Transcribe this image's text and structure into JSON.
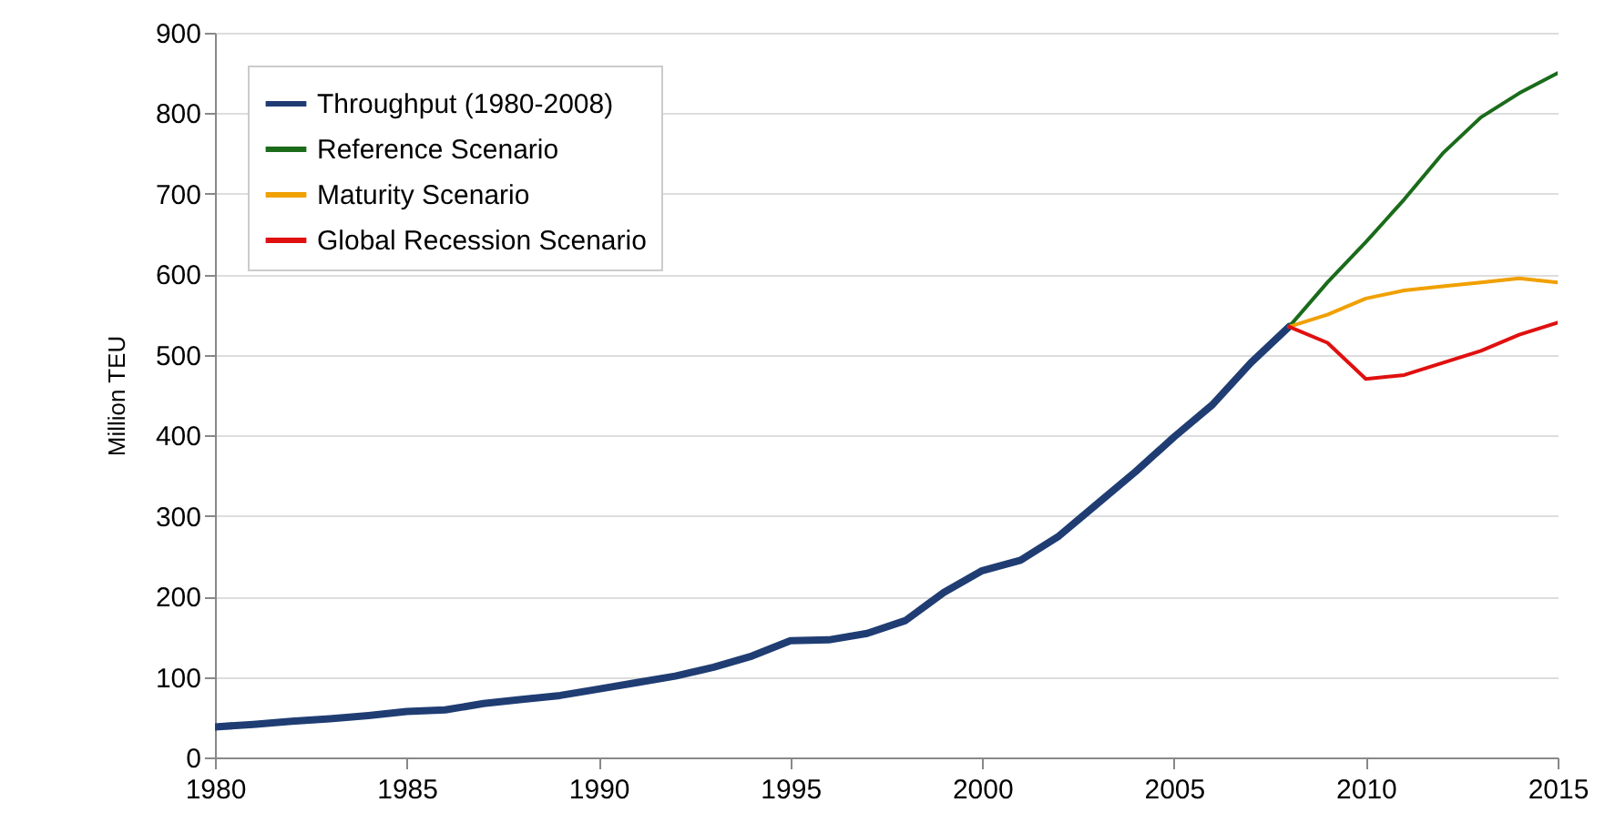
{
  "chart_data": {
    "type": "line",
    "ylabel": "Million TEU",
    "xlim": [
      1980,
      2015
    ],
    "xticks": [
      1980,
      1985,
      1990,
      1995,
      2000,
      2005,
      2010,
      2015
    ],
    "ylim": [
      0,
      900
    ],
    "yticks": [
      0,
      100,
      200,
      300,
      400,
      500,
      600,
      700,
      800,
      900
    ],
    "grid": "y",
    "legend": "top left",
    "line_style": "solid",
    "marker": "none",
    "x": [
      1980,
      1981,
      1982,
      1983,
      1984,
      1985,
      1986,
      1987,
      1988,
      1989,
      1990,
      1991,
      1992,
      1993,
      1994,
      1995,
      1996,
      1997,
      1998,
      1999,
      2000,
      2001,
      2002,
      2003,
      2004,
      2005,
      2006,
      2007,
      2008
    ],
    "series": [
      {
        "name": "Throughput (1980-2008)",
        "color": "#1f3d73",
        "values": [
          38,
          41,
          45,
          48,
          52,
          57,
          59,
          67,
          72,
          77,
          85,
          93,
          101,
          112,
          126,
          145,
          146,
          154,
          170,
          205,
          232,
          245,
          275,
          315,
          355,
          398,
          438,
          490,
          535
        ]
      },
      {
        "name": "Reference Scenario",
        "color": "#1a6b1a",
        "x": [
          2008,
          2009,
          2010,
          2011,
          2012,
          2013,
          2014,
          2015
        ],
        "values": [
          535,
          590,
          640,
          693,
          750,
          795,
          825,
          850
        ]
      },
      {
        "name": "Maturity Scenario",
        "color": "#f0a000",
        "x": [
          2008,
          2009,
          2010,
          2011,
          2012,
          2013,
          2014,
          2015
        ],
        "values": [
          535,
          550,
          570,
          580,
          585,
          590,
          595,
          590
        ]
      },
      {
        "name": "Global Recession Scenario",
        "color": "#e01010",
        "x": [
          2008,
          2009,
          2010,
          2011,
          2012,
          2013,
          2014,
          2015
        ],
        "values": [
          535,
          515,
          470,
          475,
          490,
          505,
          525,
          540
        ]
      }
    ]
  }
}
